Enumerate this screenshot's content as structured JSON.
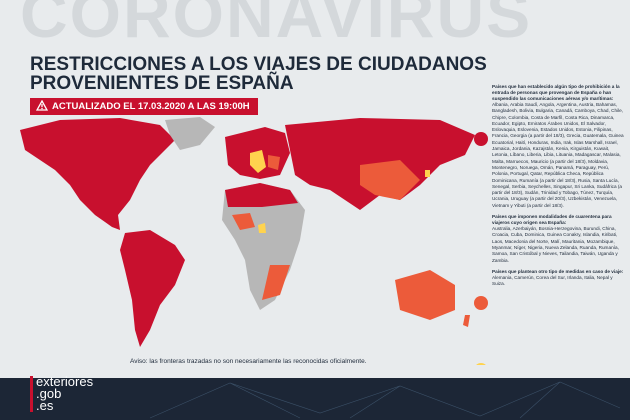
{
  "header": {
    "background_word": "CORONAVIRUS",
    "title_lines": [
      "RESTRICCIONES A LOS VIAJES DE CIUDADANOS",
      "PROVENIENTES DE ESPAÑA"
    ],
    "update": "ACTUALIZADO EL 17.03.2020 A LAS 19:00H"
  },
  "legend": [
    {
      "heading": "Países que han establecido algún tipo de prohibición a la entrada de personas que provengan de España o han suspendido las comunicaciones aéreas y/o marítimas:",
      "countries": "Albania, Arabia Saudí, Angola, Argentina, Austria, Bahamas, Bangladesh, Bolivia, Bulgaria, Canadá, Camboya, Chad, Chile, Chipre, Colombia, Costa de Marfil, Costa Rica, Dinamarca, Ecuador, Egipto, Emiratos Árabes Unidos, El Salvador, Eslovaquia, Eslovenia, Estados Unidos, Estonia, Filipinas, Francia, Georgia (a partir del 18/3), Grecia, Guatemala, Guinea Ecuatorial, Haití, Honduras, India, Irak, Islas Marshall, Israel, Jamaica, Jordania, Kazajstán, Kenia, Kirguistán, Kuwait, Letonia, Líbano, Liberia, Libia, Lituania, Madagascar, Malasia, Malta, Marruecos, Mauricio (a partir del 18/3), Moldavia, Montenegro, Noruega, Omán, Panamá, Paraguay, Perú, Polonia, Portugal, Qatar, República Checa, República Dominicana, Rumanía (a partir del 18/3), Rusia, Santa Lucía, Senegal, Serbia, Seychelles, Singapur, Sri Lanka, Sudáfrica (a partir del 18/3), Sudán, Trinidad y Tobago, Túnez, Turquía, Ucrania, Uruguay (a partir del 20/3), Uzbekistán, Venezuela, Vietnam y Yibuti (a partir del 18/3).",
      "color": "#c8102e"
    },
    {
      "heading": "Países que imponen modalidades de cuarentena para viajeros cuyo origen sea España:",
      "countries": "Australia, Azerbaiyán, Bosnia-Herzegovina, Burundi, China, Croacia, Cuba, Dominica, Guinea Conakry, Islandia, Kiribati, Laos, Macedonia del Norte, Malí, Mauritania, Mozambique, Myanmar, Níger, Nigeria, Nueva Zelanda, Ruanda, Rumanía, Samoa, San Cristóbal y Nieves, Tailandia, Taiwán, Uganda y Zambia.",
      "color": "#ec5b3a"
    },
    {
      "heading": "Países que plantean otro tipo de medidas en caso de viaje:",
      "countries": "Alemania, Camerún, Corea del Sur, Irlanda, Italia, Nepal y Suiza.",
      "color": "#ffd34e"
    }
  ],
  "notice": "Aviso: las fronteras trazadas no son necesariamente las reconocidas oficialmente.",
  "logo": [
    "exteriores",
    ".gob",
    ".es"
  ]
}
